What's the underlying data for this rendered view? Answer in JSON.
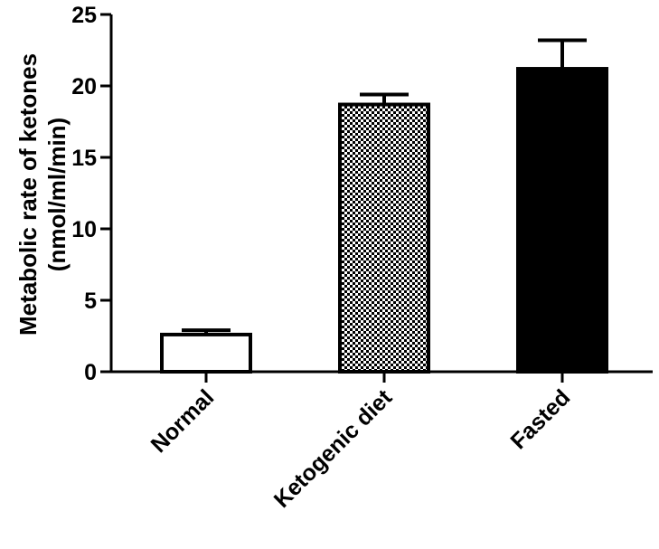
{
  "chart_data": {
    "type": "bar",
    "categories": [
      "Normal",
      "Ketogenic diet",
      "Fasted"
    ],
    "values": [
      2.6,
      18.7,
      21.2
    ],
    "errors": [
      0.3,
      0.7,
      2.0
    ],
    "ylabel_lines": [
      "Metabolic rate of ketones",
      "(nmol/ml/min)"
    ],
    "xlabel": "",
    "ylim": [
      0,
      25
    ],
    "yticks": [
      0,
      5,
      10,
      15,
      20,
      25
    ],
    "ytick_labels": [
      "0",
      "5",
      "10",
      "15",
      "20",
      "25"
    ],
    "bar_fills": [
      "white",
      "checkered",
      "black"
    ],
    "grid": false,
    "legend": "none"
  }
}
